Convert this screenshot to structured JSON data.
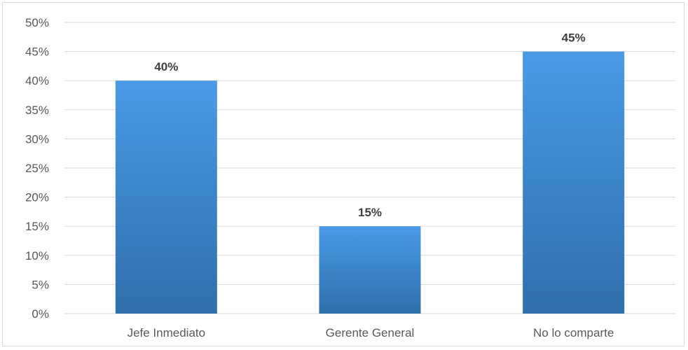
{
  "chart_data": {
    "type": "bar",
    "title": "",
    "xlabel": "",
    "ylabel": "",
    "categories": [
      "Jefe Inmediato",
      "Gerente General",
      "No lo comparte"
    ],
    "values": [
      40,
      15,
      45
    ],
    "data_labels": [
      "40%",
      "15%",
      "45%"
    ],
    "ylim": [
      0,
      50
    ],
    "y_ticks": [
      0,
      5,
      10,
      15,
      20,
      25,
      30,
      35,
      40,
      45,
      50
    ],
    "y_tick_labels": [
      "0%",
      "5%",
      "10%",
      "15%",
      "20%",
      "25%",
      "30%",
      "35%",
      "40%",
      "45%",
      "50%"
    ],
    "grid": true,
    "legend": "none",
    "colors": {
      "bar_top": "#4a9ae6",
      "bar_bottom": "#2f6faa",
      "grid": "#d9d9d9",
      "axis_text": "#595959",
      "data_label": "#404040"
    }
  }
}
